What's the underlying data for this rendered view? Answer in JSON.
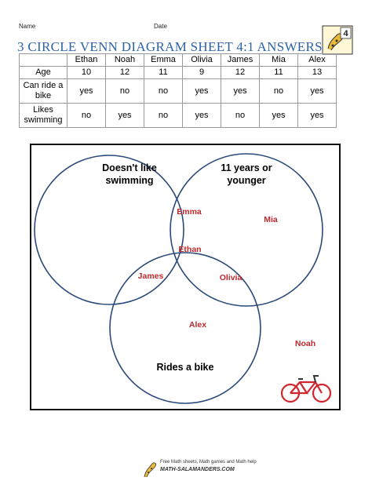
{
  "header": {
    "name_label": "Name",
    "date_label": "Date",
    "title": "3 CIRCLE VENN DIAGRAM SHEET 4:1 ANSWERS",
    "logo_number": "4"
  },
  "table": {
    "columns": [
      "Ethan",
      "Noah",
      "Emma",
      "Olivia",
      "James",
      "Mia",
      "Alex"
    ],
    "rows": [
      {
        "label": "Age",
        "values": [
          "10",
          "12",
          "11",
          "9",
          "12",
          "11",
          "13"
        ]
      },
      {
        "label": "Can ride a bike",
        "values": [
          "yes",
          "no",
          "no",
          "yes",
          "yes",
          "no",
          "yes"
        ]
      },
      {
        "label": "Likes swimming",
        "values": [
          "no",
          "yes",
          "no",
          "yes",
          "no",
          "yes",
          "yes"
        ]
      }
    ]
  },
  "venn": {
    "circle_a_label": "Doesn't like swimming",
    "circle_b_label": "11 years or younger",
    "circle_c_label": "Rides a bike",
    "names": {
      "emma": "Emma",
      "mia": "Mia",
      "ethan": "Ethan",
      "james": "James",
      "olivia": "Olivia",
      "alex": "Alex",
      "noah": "Noah"
    },
    "name_color": "#c0282d",
    "circle_color": "#2b4a7a",
    "bike_icon": "bicycle-icon",
    "bike_color": "#d0262d"
  },
  "footer": {
    "tagline": "Free Math sheets, Math games and Math help",
    "brand": "MATH-SALAMANDERS.COM"
  }
}
